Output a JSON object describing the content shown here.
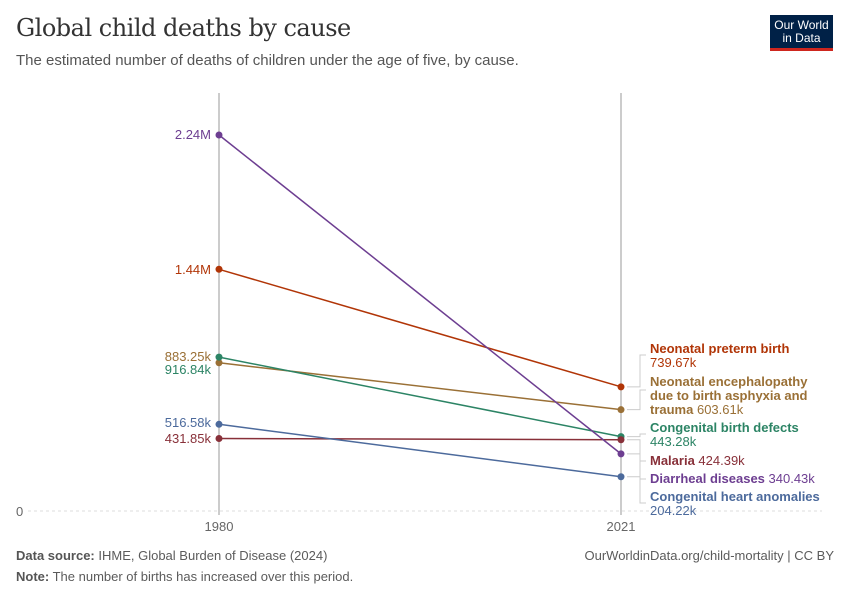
{
  "header": {
    "title": "Global child deaths by cause",
    "subtitle": "The estimated number of deaths of children under the age of five, by cause.",
    "logo": "Our World in Data"
  },
  "footer": {
    "source_label": "Data source:",
    "source": "IHME, Global Burden of Disease (2024)",
    "note_label": "Note:",
    "note": "The number of births has increased over this period.",
    "url": "OurWorldinData.org/child-mortality | CC BY"
  },
  "chart_data": {
    "type": "line",
    "subtype": "slope",
    "title": "Global child deaths by cause",
    "x": [
      1980,
      2021
    ],
    "x_tick_labels": [
      "1980",
      "2021"
    ],
    "y_tick_labels": [
      "0"
    ],
    "ylim": [
      0,
      2240000
    ],
    "grid": "horizontal baseline only",
    "series": [
      {
        "name": "Neonatal preterm birth",
        "values": [
          1440000,
          739670
        ],
        "labels": [
          "1.44M",
          "739.67k"
        ],
        "color": "#b13507"
      },
      {
        "name": "Neonatal encephalopathy due to birth asphyxia and trauma",
        "values": [
          883250,
          603610
        ],
        "labels": [
          "883.25k",
          "603.61k"
        ],
        "color": "#9a7036"
      },
      {
        "name": "Congenital birth defects",
        "values": [
          916840,
          443280
        ],
        "labels": [
          "916.84k",
          "443.28k"
        ],
        "color": "#2c8465"
      },
      {
        "name": "Malaria",
        "values": [
          431850,
          424390
        ],
        "labels": [
          "431.85k",
          "424.39k"
        ],
        "color": "#883039"
      },
      {
        "name": "Diarrheal diseases",
        "values": [
          2240000,
          340430
        ],
        "labels": [
          "2.24M",
          "340.43k"
        ],
        "color": "#6d3e91"
      },
      {
        "name": "Congenital heart anomalies",
        "values": [
          516580,
          204220
        ],
        "labels": [
          "516.58k",
          "204.22k"
        ],
        "color": "#4c6a9c"
      }
    ]
  }
}
